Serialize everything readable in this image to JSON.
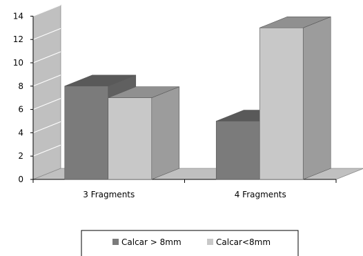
{
  "chart_data": {
    "type": "bar",
    "style": "3d-clustered-column",
    "categories": [
      "3 Fragments",
      "4 Fragments"
    ],
    "series": [
      {
        "name": "Calcar > 8mm",
        "values": [
          8,
          5
        ],
        "color": "#7b7b7b"
      },
      {
        "name": "Calcar<8mm",
        "values": [
          7,
          13
        ],
        "color": "#c8c8c8"
      }
    ],
    "ylim": [
      0,
      14
    ],
    "yticks": [
      "0",
      "2",
      "4",
      "6",
      "8",
      "10",
      "12",
      "14"
    ],
    "grid": true,
    "legend": "bottom",
    "xlabel": "",
    "ylabel": "",
    "title": ""
  }
}
